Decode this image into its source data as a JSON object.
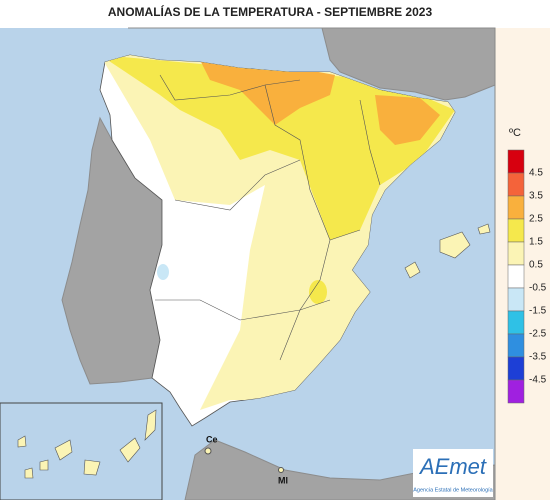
{
  "title": "ANOMALÍAS DE LA TEMPERATURA - SEPTIEMBRE 2023",
  "legend": {
    "unit": "ºC",
    "ticks": [
      4.5,
      3.5,
      2.5,
      1.5,
      0.5,
      -0.5,
      -1.5,
      -2.5,
      -3.5,
      -4.5
    ],
    "colors": [
      "#d7000f",
      "#f4633a",
      "#f9b03d",
      "#f5e84c",
      "#fbf4b5",
      "#ffffff",
      "#c9e7f6",
      "#2fc1e6",
      "#2f8fe0",
      "#1d3fd6",
      "#a020e0"
    ]
  },
  "map_labels": [
    "Ce",
    "Ml"
  ],
  "logo": {
    "name": "AEmet",
    "subtitle": "Agencia Estatal de Meteorología"
  }
}
